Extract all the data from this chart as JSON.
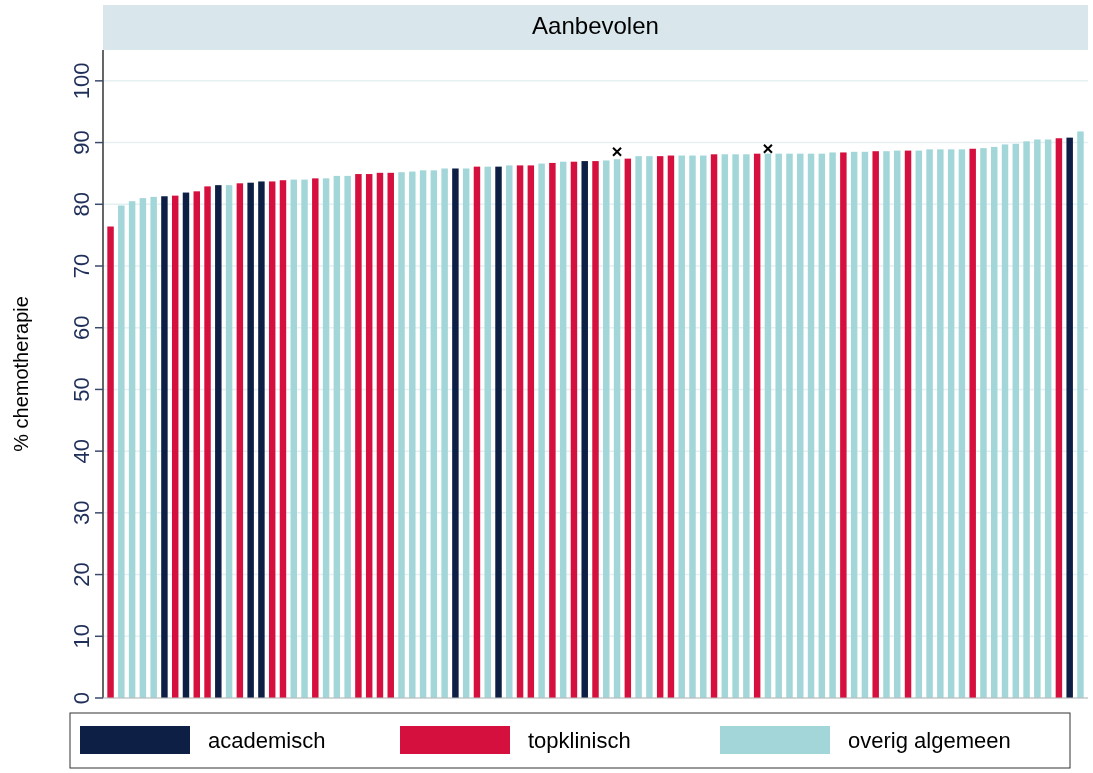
{
  "chart_data": {
    "type": "bar",
    "title": "Aanbevolen",
    "ylabel": "% chemotherapie",
    "stacked": true,
    "grid": "y",
    "legend": "bottom",
    "categories": [
      null,
      null,
      null,
      null,
      null,
      null,
      null,
      null,
      null,
      null,
      null,
      null,
      null,
      null,
      null,
      null,
      null,
      null,
      null,
      null,
      null,
      null,
      null,
      null,
      null,
      null,
      null,
      null,
      null,
      null,
      null,
      null,
      null,
      null,
      null,
      null,
      null,
      null,
      null,
      null,
      null,
      null,
      null,
      null,
      null,
      null,
      null,
      null,
      null,
      null,
      null,
      null,
      null,
      null,
      null,
      null,
      null,
      null,
      null,
      null,
      null,
      null,
      null,
      null,
      null,
      null,
      null,
      null,
      null,
      null,
      null,
      null,
      null,
      null,
      null,
      null,
      null,
      null,
      null,
      null,
      null,
      null,
      null,
      null,
      null,
      null,
      null,
      null,
      null,
      null,
      null
    ],
    "ylim": [
      0,
      105
    ],
    "yticks": [
      0,
      10,
      20,
      30,
      40,
      50,
      60,
      70,
      80,
      90,
      100
    ],
    "series": [
      {
        "name": "academisch",
        "color": "#0d1f45",
        "values": [
          null,
          null,
          null,
          null,
          null,
          81.3,
          null,
          81.9,
          null,
          null,
          83.1,
          null,
          null,
          83.5,
          83.7,
          null,
          null,
          null,
          null,
          null,
          null,
          null,
          null,
          null,
          null,
          null,
          null,
          null,
          null,
          null,
          null,
          null,
          85.8,
          null,
          null,
          null,
          86.1,
          null,
          null,
          null,
          null,
          null,
          null,
          null,
          87.0,
          null,
          null,
          null,
          null,
          null,
          null,
          null,
          null,
          null,
          null,
          null,
          null,
          null,
          null,
          null,
          null,
          null,
          null,
          null,
          null,
          null,
          null,
          null,
          null,
          null,
          null,
          null,
          null,
          null,
          null,
          null,
          null,
          null,
          null,
          null,
          null,
          null,
          null,
          null,
          null,
          null,
          null,
          null,
          null,
          90.8,
          null
        ]
      },
      {
        "name": "topklinisch",
        "color": "#d6103e",
        "values": [
          76.4,
          null,
          null,
          null,
          null,
          null,
          81.4,
          null,
          82.1,
          82.9,
          null,
          null,
          83.4,
          null,
          null,
          83.7,
          83.9,
          null,
          null,
          84.2,
          null,
          null,
          null,
          84.9,
          84.9,
          85.1,
          85.1,
          null,
          null,
          null,
          null,
          null,
          null,
          null,
          86.1,
          null,
          null,
          null,
          86.3,
          86.3,
          null,
          86.7,
          null,
          86.9,
          null,
          87.0,
          null,
          null,
          87.4,
          null,
          null,
          87.8,
          87.9,
          null,
          null,
          null,
          88.1,
          null,
          null,
          null,
          88.2,
          null,
          null,
          null,
          null,
          null,
          null,
          null,
          88.4,
          null,
          null,
          88.6,
          null,
          null,
          88.7,
          null,
          null,
          null,
          null,
          null,
          89.0,
          null,
          null,
          null,
          null,
          null,
          null,
          null,
          90.7,
          null,
          null
        ]
      },
      {
        "name": "overig algemeen",
        "color": "#a2d6d8",
        "values": [
          null,
          79.8,
          80.5,
          81.0,
          81.2,
          null,
          null,
          null,
          null,
          null,
          null,
          83.1,
          null,
          null,
          null,
          null,
          null,
          84.0,
          84.0,
          null,
          84.2,
          84.6,
          84.6,
          null,
          null,
          null,
          null,
          85.2,
          85.3,
          85.5,
          85.5,
          85.8,
          null,
          85.8,
          null,
          86.1,
          null,
          86.3,
          null,
          null,
          86.6,
          null,
          86.9,
          null,
          null,
          null,
          87.1,
          87.3,
          null,
          87.8,
          87.8,
          null,
          null,
          87.9,
          87.9,
          87.9,
          null,
          88.1,
          88.1,
          88.1,
          null,
          88.2,
          88.2,
          88.2,
          88.2,
          88.2,
          88.2,
          88.4,
          null,
          88.5,
          88.5,
          null,
          88.6,
          88.7,
          null,
          88.7,
          88.9,
          88.9,
          88.9,
          88.9,
          null,
          89.1,
          89.3,
          89.7,
          89.8,
          90.2,
          90.5,
          90.5,
          null,
          null,
          91.8
        ]
      },
      {
        "type": "scatter",
        "marker": "cross",
        "color": "#000000",
        "values": [
          null,
          null,
          null,
          null,
          null,
          null,
          null,
          null,
          null,
          null,
          null,
          null,
          null,
          null,
          null,
          null,
          null,
          null,
          null,
          null,
          null,
          null,
          null,
          null,
          null,
          null,
          null,
          null,
          null,
          null,
          null,
          null,
          null,
          null,
          null,
          null,
          null,
          null,
          null,
          null,
          null,
          null,
          null,
          null,
          null,
          null,
          null,
          88.5,
          null,
          null,
          null,
          null,
          null,
          null,
          null,
          null,
          null,
          null,
          null,
          null,
          null,
          89.0,
          null,
          null,
          null,
          null,
          null,
          null,
          null,
          null,
          null,
          null,
          null,
          null,
          null,
          null,
          null,
          null,
          null,
          null,
          null,
          null,
          null,
          null,
          null,
          null,
          null,
          null,
          null,
          null,
          null
        ]
      }
    ]
  }
}
